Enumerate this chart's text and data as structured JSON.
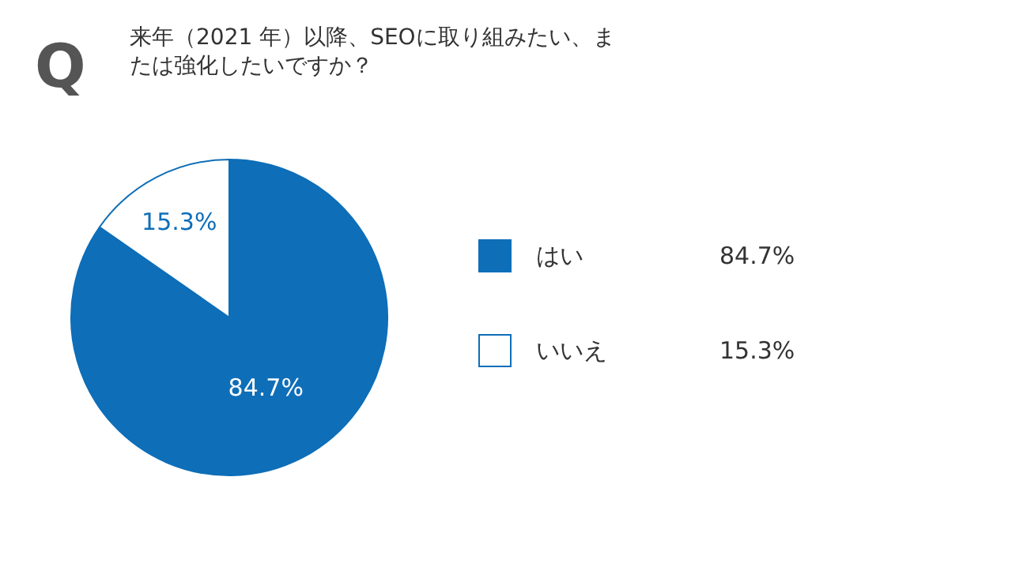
{
  "chart_data": {
    "type": "pie",
    "title": "来年（2021 年）以降、SEOに取り組みたい、または強化したいですか？",
    "annotations": [
      "Q"
    ],
    "categories": [
      "はい",
      "いいえ"
    ],
    "values": [
      84.7,
      15.3
    ],
    "colors": [
      "#0e6eb8",
      "#ffffff"
    ],
    "value_labels": [
      "84.7%",
      "15.3%"
    ],
    "data_labels": true,
    "legend": "right"
  }
}
